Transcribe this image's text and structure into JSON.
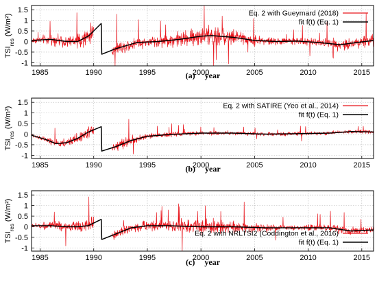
{
  "chart_data": [
    {
      "type": "line",
      "caption": "(a)",
      "xlabel": "year",
      "ylabel_main": "TSI",
      "ylabel_sub": "res",
      "ylabel_unit": "(W/m²)",
      "xlim": [
        1984.2,
        2016.1
      ],
      "ylim": [
        -1.15,
        1.7
      ],
      "xticks": [
        1985,
        1990,
        1995,
        2000,
        2005,
        2010,
        2015
      ],
      "yticks": [
        -1,
        -0.5,
        0,
        0.5,
        1,
        1.5
      ],
      "legend_position": "top-right",
      "series": [
        {
          "name": "Eq. 2 with Gueymard (2018)",
          "color": "#e8141b",
          "style": "noisy-daily",
          "segments": [
            [
              1984.2,
              1990.0
            ],
            [
              1991.7,
              2016.1
            ]
          ],
          "noise_level": [
            {
              "x": 1984.2,
              "y": 0.12
            },
            {
              "x": 1988.0,
              "y": 0.25
            },
            {
              "x": 1990.0,
              "y": 0.35
            },
            {
              "x": 1992.0,
              "y": 0.3
            },
            {
              "x": 1995.0,
              "y": 0.2
            },
            {
              "x": 1998.0,
              "y": 0.3
            },
            {
              "x": 2001.0,
              "y": 0.38
            },
            {
              "x": 2004.0,
              "y": 0.25
            },
            {
              "x": 2008.0,
              "y": 0.12
            },
            {
              "x": 2012.0,
              "y": 0.18
            },
            {
              "x": 2014.5,
              "y": 0.25
            },
            {
              "x": 2016.1,
              "y": 0.22
            }
          ]
        },
        {
          "name": "fit f(t) (Eq. 1)",
          "color": "#000000",
          "style": "fit",
          "points": [
            {
              "x": 1984.2,
              "y": 0.05
            },
            {
              "x": 1986.0,
              "y": 0.1
            },
            {
              "x": 1987.5,
              "y": 0.0
            },
            {
              "x": 1988.5,
              "y": 0.0
            },
            {
              "x": 1989.5,
              "y": 0.25
            },
            {
              "x": 1990.7,
              "y": 0.85
            },
            {
              "x": 1990.75,
              "y": -0.6
            },
            {
              "x": 1992.0,
              "y": -0.35
            },
            {
              "x": 1994.0,
              "y": -0.05
            },
            {
              "x": 1996.0,
              "y": 0.0
            },
            {
              "x": 1998.0,
              "y": 0.1
            },
            {
              "x": 2000.0,
              "y": 0.25
            },
            {
              "x": 2001.0,
              "y": 0.28
            },
            {
              "x": 2003.0,
              "y": 0.2
            },
            {
              "x": 2005.0,
              "y": 0.05
            },
            {
              "x": 2007.0,
              "y": 0.0
            },
            {
              "x": 2009.0,
              "y": 0.02
            },
            {
              "x": 2011.0,
              "y": -0.05
            },
            {
              "x": 2013.0,
              "y": -0.15
            },
            {
              "x": 2014.5,
              "y": -0.05
            },
            {
              "x": 2016.1,
              "y": 0.05
            }
          ]
        }
      ]
    },
    {
      "type": "line",
      "caption": "(b)",
      "xlabel": "year",
      "ylabel_main": "TSI",
      "ylabel_sub": "res",
      "ylabel_unit": "(W/m²)",
      "xlim": [
        1984.2,
        2016.1
      ],
      "ylim": [
        -1.15,
        1.7
      ],
      "xticks": [
        1985,
        1990,
        1995,
        2000,
        2005,
        2010,
        2015
      ],
      "yticks": [
        -1,
        -0.5,
        0,
        0.5,
        1,
        1.5
      ],
      "legend_position": "top-right",
      "series": [
        {
          "name": "Eq. 2 with SATIRE (Yeo et al., 2014)",
          "color": "#e8141b",
          "style": "noisy-daily",
          "segments": [
            [
              1984.2,
              1990.0
            ],
            [
              1991.7,
              2016.1
            ]
          ],
          "noise_level": [
            {
              "x": 1984.2,
              "y": 0.06
            },
            {
              "x": 1988.0,
              "y": 0.18
            },
            {
              "x": 1990.0,
              "y": 0.22
            },
            {
              "x": 1992.0,
              "y": 0.25
            },
            {
              "x": 1995.0,
              "y": 0.1
            },
            {
              "x": 2000.0,
              "y": 0.08
            },
            {
              "x": 2005.0,
              "y": 0.07
            },
            {
              "x": 2010.0,
              "y": 0.07
            },
            {
              "x": 2016.1,
              "y": 0.07
            }
          ]
        },
        {
          "name": "fit f(t) (Eq. 1)",
          "color": "#000000",
          "style": "fit",
          "points": [
            {
              "x": 1984.2,
              "y": -0.05
            },
            {
              "x": 1985.5,
              "y": -0.25
            },
            {
              "x": 1986.5,
              "y": -0.45
            },
            {
              "x": 1987.5,
              "y": -0.4
            },
            {
              "x": 1988.5,
              "y": -0.2
            },
            {
              "x": 1989.5,
              "y": 0.1
            },
            {
              "x": 1990.7,
              "y": 0.35
            },
            {
              "x": 1990.75,
              "y": -0.8
            },
            {
              "x": 1992.0,
              "y": -0.6
            },
            {
              "x": 1993.5,
              "y": -0.3
            },
            {
              "x": 1995.0,
              "y": -0.1
            },
            {
              "x": 1997.0,
              "y": -0.02
            },
            {
              "x": 2000.0,
              "y": 0.05
            },
            {
              "x": 2003.0,
              "y": 0.05
            },
            {
              "x": 2006.0,
              "y": 0.0
            },
            {
              "x": 2009.0,
              "y": 0.02
            },
            {
              "x": 2012.0,
              "y": 0.05
            },
            {
              "x": 2014.0,
              "y": 0.12
            },
            {
              "x": 2016.1,
              "y": 0.1
            }
          ]
        }
      ]
    },
    {
      "type": "line",
      "caption": "(c)",
      "xlabel": "year",
      "ylabel_main": "TSI",
      "ylabel_sub": "res",
      "ylabel_unit": "(W/m²)",
      "xlim": [
        1984.2,
        2016.1
      ],
      "ylim": [
        -1.15,
        1.7
      ],
      "xticks": [
        1985,
        1990,
        1995,
        2000,
        2005,
        2010,
        2015
      ],
      "yticks": [
        -1,
        -0.5,
        0,
        0.5,
        1,
        1.5
      ],
      "legend_position": "bottom-right",
      "series": [
        {
          "name": "Eq. 2 with NRLTSI2 (Coddington et al., 2016)",
          "color": "#e8141b",
          "style": "noisy-daily",
          "segments": [
            [
              1984.2,
              1990.0
            ],
            [
              1991.7,
              2016.1
            ]
          ],
          "noise_level": [
            {
              "x": 1984.2,
              "y": 0.1
            },
            {
              "x": 1988.0,
              "y": 0.2
            },
            {
              "x": 1990.0,
              "y": 0.25
            },
            {
              "x": 1993.0,
              "y": 0.18
            },
            {
              "x": 1997.0,
              "y": 0.22
            },
            {
              "x": 2001.0,
              "y": 0.3
            },
            {
              "x": 2004.0,
              "y": 0.2
            },
            {
              "x": 2008.0,
              "y": 0.1
            },
            {
              "x": 2012.0,
              "y": 0.14
            },
            {
              "x": 2016.1,
              "y": 0.15
            }
          ]
        },
        {
          "name": "fit f(t) (Eq. 1)",
          "color": "#000000",
          "style": "fit",
          "points": [
            {
              "x": 1984.2,
              "y": 0.05
            },
            {
              "x": 1986.0,
              "y": 0.05
            },
            {
              "x": 1987.5,
              "y": 0.0
            },
            {
              "x": 1988.5,
              "y": 0.0
            },
            {
              "x": 1989.5,
              "y": 0.05
            },
            {
              "x": 1990.7,
              "y": 0.35
            },
            {
              "x": 1990.75,
              "y": -0.6
            },
            {
              "x": 1992.0,
              "y": -0.35
            },
            {
              "x": 1993.5,
              "y": -0.05
            },
            {
              "x": 1995.0,
              "y": 0.05
            },
            {
              "x": 1997.0,
              "y": 0.05
            },
            {
              "x": 2000.0,
              "y": 0.0
            },
            {
              "x": 2003.0,
              "y": 0.0
            },
            {
              "x": 2006.0,
              "y": -0.05
            },
            {
              "x": 2009.0,
              "y": -0.05
            },
            {
              "x": 2012.0,
              "y": -0.05
            },
            {
              "x": 2014.0,
              "y": -0.2
            },
            {
              "x": 2016.1,
              "y": -0.15
            }
          ]
        }
      ]
    }
  ]
}
